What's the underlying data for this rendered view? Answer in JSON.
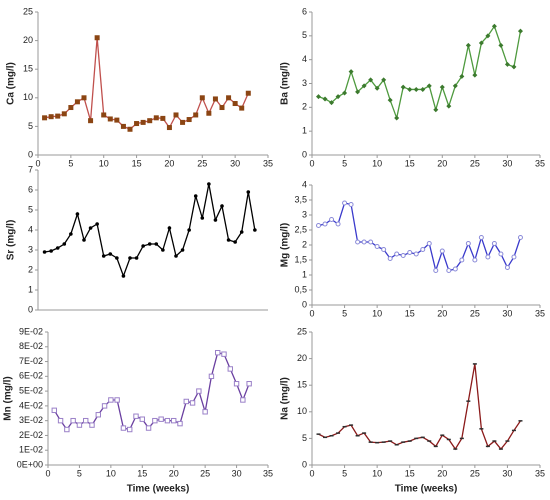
{
  "chart_data": [
    {
      "type": "line",
      "y_label": "Ca (mg/l)",
      "xlim": [
        0,
        35
      ],
      "xticks": [
        0,
        5,
        10,
        15,
        20,
        25,
        30,
        35
      ],
      "ylim": [
        0,
        25
      ],
      "yticks": [
        0,
        5,
        10,
        15,
        20,
        25
      ],
      "marker": "square",
      "x": [
        1,
        2,
        3,
        4,
        5,
        6,
        7,
        8,
        9,
        10,
        11,
        12,
        13,
        14,
        15,
        16,
        17,
        18,
        19,
        20,
        21,
        22,
        23,
        24,
        25,
        26,
        27,
        28,
        29,
        30,
        31,
        32
      ],
      "series": [
        {
          "color": "#c0504d",
          "marker_color": "#8b4513",
          "values": [
            6.5,
            6.7,
            6.8,
            7.2,
            8.3,
            9.3,
            10,
            6,
            20.5,
            7,
            6.3,
            6.1,
            5,
            4.5,
            5.5,
            5.7,
            6,
            6.5,
            6.4,
            4.8,
            7,
            5.7,
            6.2,
            7,
            10,
            7.3,
            9.8,
            8.3,
            10,
            9,
            8.2,
            10.8
          ]
        }
      ]
    },
    {
      "type": "line",
      "y_label": "Ba (mg/l)",
      "xlim": [
        0,
        35
      ],
      "xticks": [
        0,
        5,
        10,
        15,
        20,
        25,
        30,
        35
      ],
      "ylim": [
        0,
        6
      ],
      "yticks": [
        0,
        1,
        2,
        3,
        4,
        5,
        6
      ],
      "marker": "diamond",
      "x": [
        1,
        2,
        3,
        4,
        5,
        6,
        7,
        8,
        9,
        10,
        11,
        12,
        13,
        14,
        15,
        16,
        17,
        18,
        19,
        20,
        21,
        22,
        23,
        24,
        25,
        26,
        27,
        28,
        29,
        30,
        31,
        32
      ],
      "series": [
        {
          "color": "#4e9a3e",
          "marker_color": "#3c7a2e",
          "values": [
            2.45,
            2.35,
            2.2,
            2.45,
            2.6,
            3.5,
            2.65,
            2.9,
            3.15,
            2.8,
            3.15,
            2.3,
            1.55,
            2.85,
            2.75,
            2.75,
            2.75,
            2.9,
            1.9,
            2.85,
            2.05,
            2.9,
            3.3,
            4.6,
            3.35,
            4.7,
            5.0,
            5.4,
            4.6,
            3.8,
            3.7,
            5.2
          ]
        }
      ]
    },
    {
      "type": "line",
      "y_label": "Sr (mg/l)",
      "xlim": [
        0,
        35
      ],
      "ylim": [
        0,
        7
      ],
      "yticks": [
        0,
        1,
        2,
        3,
        4,
        5,
        6,
        7
      ],
      "marker": "circle",
      "x": [
        1,
        2,
        3,
        4,
        5,
        6,
        7,
        8,
        9,
        10,
        11,
        12,
        13,
        14,
        15,
        16,
        17,
        18,
        19,
        20,
        21,
        22,
        23,
        24,
        25,
        26,
        27,
        28,
        29,
        30,
        31,
        32,
        33
      ],
      "series": [
        {
          "color": "#000000",
          "marker_color": "#000000",
          "values": [
            2.9,
            2.95,
            3.1,
            3.3,
            3.8,
            4.8,
            3.5,
            4.1,
            4.3,
            2.7,
            2.8,
            2.6,
            1.7,
            2.6,
            2.6,
            3.2,
            3.3,
            3.3,
            3,
            4.1,
            2.7,
            3,
            4,
            5.7,
            4.6,
            6.3,
            4.5,
            5.2,
            3.5,
            3.4,
            3.9,
            5.9,
            4
          ]
        }
      ]
    },
    {
      "type": "line",
      "y_label": "Mg (mg/l)",
      "xlim": [
        0,
        35
      ],
      "xticks": [
        0,
        5,
        10,
        15,
        20,
        25,
        30,
        35
      ],
      "ylim": [
        0,
        4
      ],
      "yticks": [
        0,
        {
          "value": 0.5,
          "label": "0,5"
        },
        1,
        {
          "value": 1.5,
          "label": "1,5"
        },
        2,
        {
          "value": 2.5,
          "label": "2,5"
        },
        3,
        {
          "value": 3.5,
          "label": "3,5"
        },
        4
      ],
      "marker": "open-circle",
      "x": [
        1,
        2,
        3,
        4,
        5,
        6,
        7,
        8,
        9,
        10,
        11,
        12,
        13,
        14,
        15,
        16,
        17,
        18,
        19,
        20,
        21,
        22,
        23,
        24,
        25,
        26,
        27,
        28,
        29,
        30,
        31,
        32
      ],
      "series": [
        {
          "color": "#3a3acc",
          "marker_color": "#8a8ad8",
          "values": [
            2.65,
            2.7,
            2.85,
            2.7,
            3.4,
            3.35,
            2.1,
            2.1,
            2.1,
            1.95,
            1.85,
            1.55,
            1.7,
            1.65,
            1.75,
            1.7,
            1.85,
            2.05,
            1.15,
            1.8,
            1.15,
            1.2,
            1.5,
            2.05,
            1.5,
            2.25,
            1.6,
            2.05,
            1.7,
            1.25,
            1.6,
            2.25
          ]
        }
      ]
    },
    {
      "type": "line",
      "y_label": "Mn (mg/l)",
      "x_label": "Time (weeks)",
      "xlim": [
        0,
        35
      ],
      "xticks": [
        0,
        5,
        10,
        15,
        20,
        25,
        30,
        35
      ],
      "ylim": [
        0,
        0.09
      ],
      "yticks": [
        {
          "value": 0,
          "label": "0E+00"
        },
        {
          "value": 0.01,
          "label": "1E-02"
        },
        {
          "value": 0.02,
          "label": "2E-02"
        },
        {
          "value": 0.03,
          "label": "3E-02"
        },
        {
          "value": 0.04,
          "label": "4E-02"
        },
        {
          "value": 0.05,
          "label": "5E-02"
        },
        {
          "value": 0.06,
          "label": "6E-02"
        },
        {
          "value": 0.07,
          "label": "7E-02"
        },
        {
          "value": 0.08,
          "label": "8E-02"
        },
        {
          "value": 0.09,
          "label": "9E-02"
        }
      ],
      "marker": "open-square",
      "x": [
        1,
        2,
        3,
        4,
        5,
        6,
        7,
        8,
        9,
        10,
        11,
        12,
        13,
        14,
        15,
        16,
        17,
        18,
        19,
        20,
        21,
        22,
        23,
        24,
        25,
        26,
        27,
        28,
        29,
        30,
        31,
        32
      ],
      "series": [
        {
          "color": "#6a3fa0",
          "marker_color": "#9a80c8",
          "values": [
            0.037,
            0.03,
            0.024,
            0.03,
            0.027,
            0.03,
            0.027,
            0.034,
            0.04,
            0.044,
            0.044,
            0.025,
            0.024,
            0.033,
            0.031,
            0.025,
            0.03,
            0.031,
            0.03,
            0.03,
            0.028,
            0.043,
            0.042,
            0.05,
            0.036,
            0.06,
            0.076,
            0.075,
            0.065,
            0.055,
            0.044,
            0.055
          ]
        }
      ]
    },
    {
      "type": "line",
      "y_label": "Na (mg/l)",
      "x_label": "Time (weeks)",
      "xlim": [
        0,
        35
      ],
      "xticks": [
        0,
        5,
        10,
        15,
        20,
        25,
        30,
        35
      ],
      "ylim": [
        0,
        25
      ],
      "yticks": [
        0,
        5,
        10,
        15,
        20,
        25
      ],
      "marker": "dash",
      "x": [
        1,
        2,
        3,
        4,
        5,
        6,
        7,
        8,
        9,
        10,
        11,
        12,
        13,
        14,
        15,
        16,
        17,
        18,
        19,
        20,
        21,
        22,
        23,
        24,
        25,
        26,
        27,
        28,
        29,
        30,
        31,
        32
      ],
      "series": [
        {
          "color": "#8b1a1a",
          "marker_color": "#2e2e2e",
          "values": [
            5.8,
            5.2,
            5.5,
            6,
            7.2,
            7.5,
            5.5,
            6,
            4.3,
            4.2,
            4.3,
            4.5,
            3.8,
            4.3,
            4.5,
            5,
            5.2,
            4.5,
            3.5,
            5.6,
            4.8,
            3,
            5,
            12,
            19,
            6.8,
            3.5,
            4.5,
            3,
            4.5,
            6.5,
            8.3
          ]
        }
      ]
    }
  ]
}
